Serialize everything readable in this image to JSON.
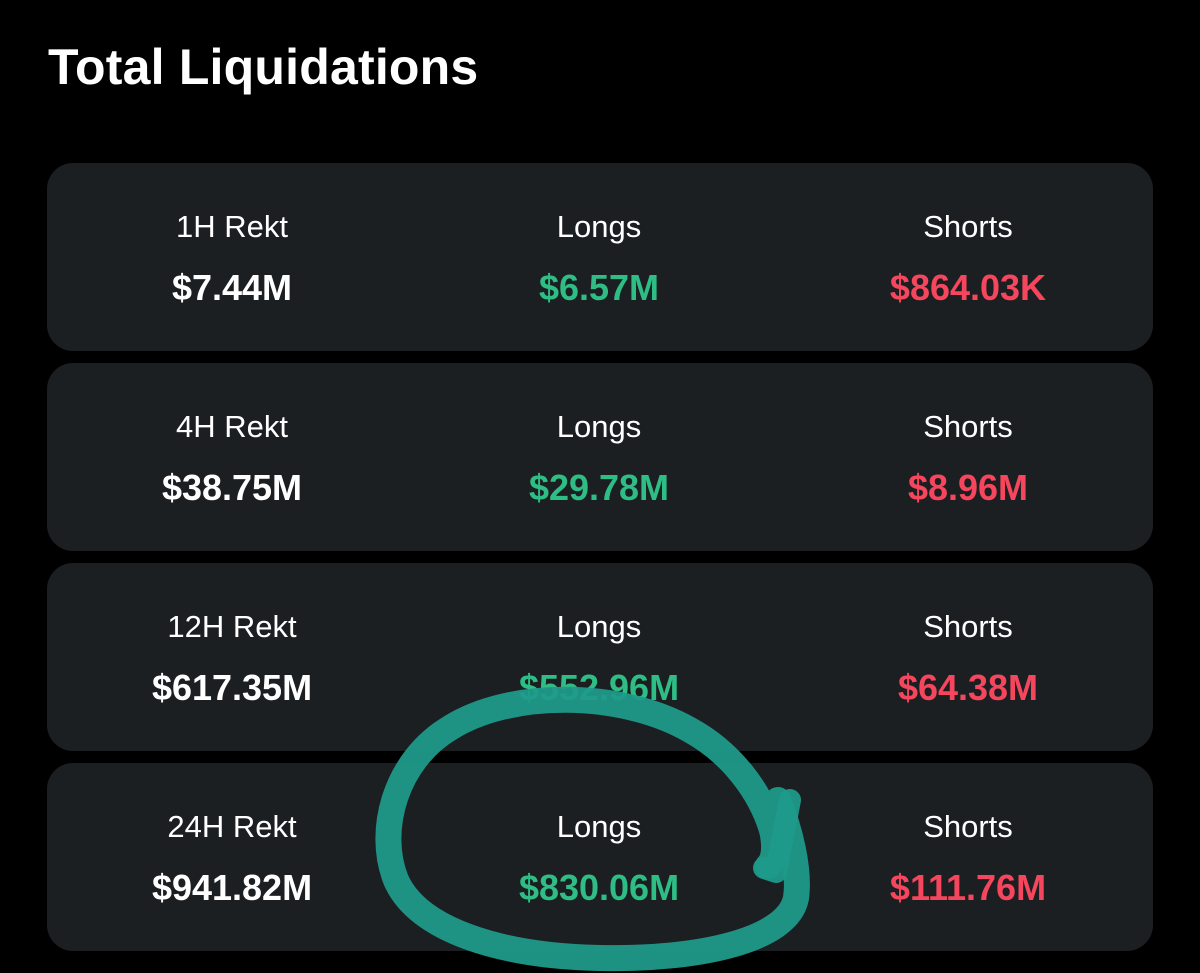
{
  "title": "Total Liquidations",
  "colors": {
    "background": "#000000",
    "card": "#1c1f22",
    "total": "#ffffff",
    "longs": "#2ebd85",
    "shorts": "#f6465d",
    "annotation": "#1f9a8a"
  },
  "rows": [
    {
      "period": "1H Rekt",
      "total": "$7.44M",
      "longs_label": "Longs",
      "longs": "$6.57M",
      "shorts_label": "Shorts",
      "shorts": "$864.03K"
    },
    {
      "period": "4H Rekt",
      "total": "$38.75M",
      "longs_label": "Longs",
      "longs": "$29.78M",
      "shorts_label": "Shorts",
      "shorts": "$8.96M"
    },
    {
      "period": "12H Rekt",
      "total": "$617.35M",
      "longs_label": "Longs",
      "longs": "$552.96M",
      "shorts_label": "Shorts",
      "shorts": "$64.38M"
    },
    {
      "period": "24H Rekt",
      "total": "$941.82M",
      "longs_label": "Longs",
      "longs": "$830.06M",
      "shorts_label": "Shorts",
      "shorts": "$111.76M"
    }
  ]
}
